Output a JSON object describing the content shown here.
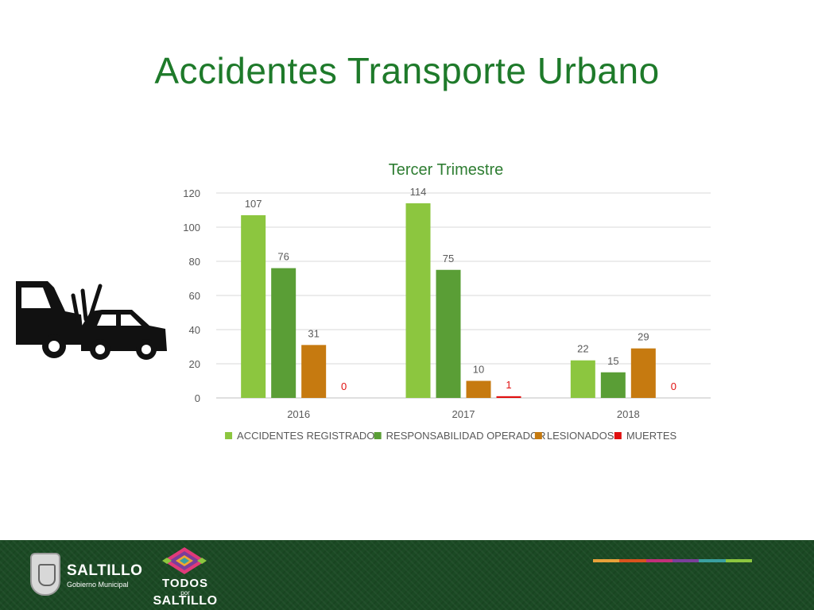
{
  "slide": {
    "title": "Accidentes Transporte Urbano"
  },
  "chart_data": {
    "type": "bar",
    "title": "Tercer Trimestre",
    "categories": [
      "2016",
      "2017",
      "2018"
    ],
    "series": [
      {
        "name": "ACCIDENTES REGISTRADOS",
        "color": "#8cc63f",
        "label_color": "#595959",
        "values": [
          107,
          114,
          22
        ]
      },
      {
        "name": "RESPONSABILIDAD OPERADOR",
        "color": "#5a9e36",
        "label_color": "#595959",
        "values": [
          76,
          75,
          15
        ]
      },
      {
        "name": "LESIONADOS",
        "color": "#c67a10",
        "label_color": "#595959",
        "values": [
          31,
          10,
          29
        ]
      },
      {
        "name": "MUERTES",
        "color": "#e01010",
        "label_color": "#e01010",
        "values": [
          0,
          1,
          0
        ]
      }
    ],
    "ylim": [
      0,
      120
    ],
    "yticks": [
      0,
      20,
      40,
      60,
      80,
      100,
      120
    ],
    "grid": true,
    "legend": "bottom",
    "xlabel": "",
    "ylabel": ""
  },
  "footer": {
    "city_name": "SALTILLO",
    "city_sub": "Gobierno Municipal",
    "campaign_top": "TODOS",
    "campaign_mid": "por",
    "campaign_bottom": "SALTILLO",
    "stripe_colors": [
      "#e8a13a",
      "#d9531e",
      "#c2307a",
      "#7a3f9a",
      "#3aa0a0",
      "#8cc63f"
    ]
  },
  "icons": {
    "crash": "car-crash-icon",
    "shield": "coat-of-arms-icon",
    "diamond": "woven-diamond-icon"
  }
}
